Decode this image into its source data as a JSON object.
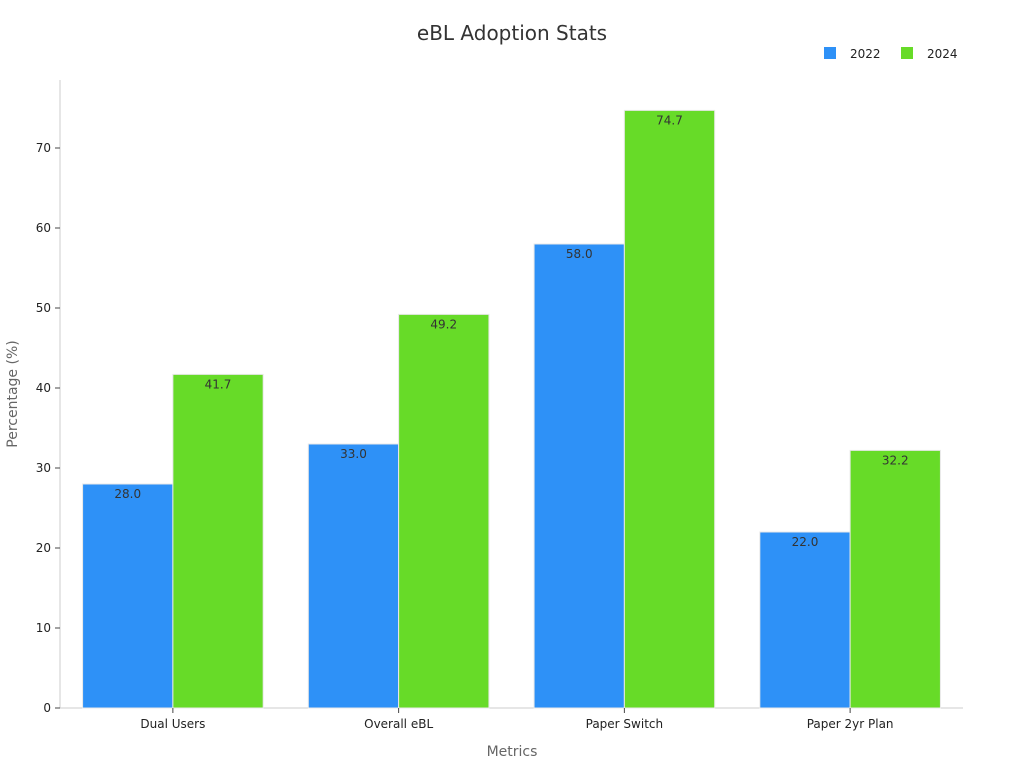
{
  "chart_data": {
    "type": "bar",
    "title": "eBL Adoption Stats",
    "xlabel": "Metrics",
    "ylabel": "Percentage (%)",
    "categories": [
      "Dual Users",
      "Overall eBL",
      "Paper Switch",
      "Paper 2yr Plan"
    ],
    "series": [
      {
        "name": "2022",
        "color": "#2e91f7",
        "values": [
          28.0,
          33.0,
          58.0,
          22.0
        ],
        "labels": [
          "28.0",
          "33.0",
          "58.0",
          "22.0"
        ]
      },
      {
        "name": "2024",
        "color": "#67db28",
        "values": [
          41.7,
          49.2,
          74.7,
          32.2
        ],
        "labels": [
          "41.7",
          "49.2",
          "74.7",
          "32.2"
        ]
      }
    ],
    "ylim": [
      0,
      78.5
    ],
    "yticks": [
      0,
      10,
      20,
      30,
      40,
      50,
      60,
      70
    ],
    "ytick_labels": [
      "0",
      "10",
      "20",
      "30",
      "40",
      "50",
      "60",
      "70"
    ],
    "grid": false,
    "legend_position": "top-right"
  }
}
